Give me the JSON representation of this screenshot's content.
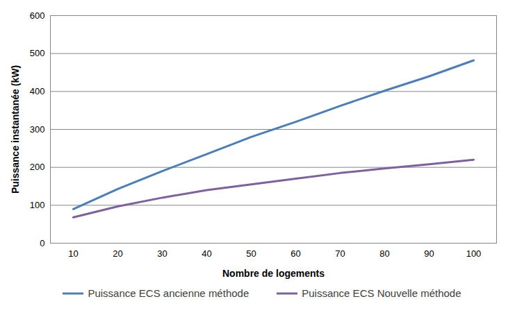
{
  "chart_data": {
    "type": "line",
    "x_label": "Nombre de logements",
    "y_label": "Puissance instantanée (kW)",
    "categories": [
      "10",
      "20",
      "30",
      "40",
      "50",
      "60",
      "70",
      "80",
      "90",
      "100"
    ],
    "series": [
      {
        "name": "Puissance ECS ancienne méthode",
        "color": "#4a7ebb",
        "values": [
          90,
          143,
          190,
          235,
          280,
          320,
          362,
          402,
          440,
          482
        ]
      },
      {
        "name": "Puissance ECS Nouvelle méthode",
        "color": "#7d60a0",
        "values": [
          68,
          97,
          120,
          140,
          155,
          170,
          185,
          197,
          208,
          220
        ]
      }
    ],
    "ylim": [
      0,
      600
    ],
    "yticks": [
      0,
      100,
      200,
      300,
      400,
      500,
      600
    ],
    "grid": true,
    "legend": "bottom"
  }
}
